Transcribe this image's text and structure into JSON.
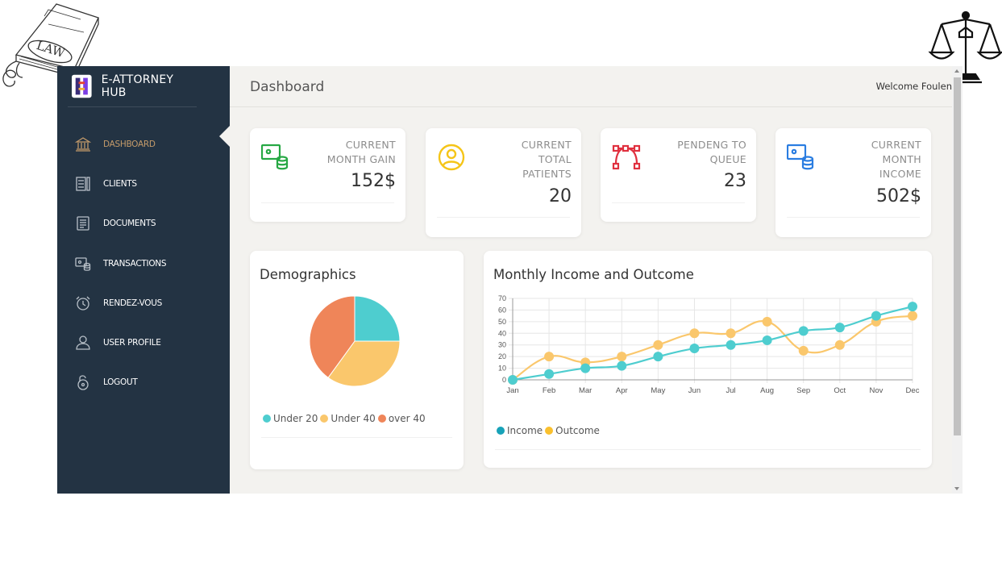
{
  "decor": {
    "book_text": "LAW"
  },
  "brand": {
    "name": "E-ATTORNEY HUB"
  },
  "nav": [
    {
      "label": "DASHBOARD",
      "icon": "bank-icon",
      "active": true
    },
    {
      "label": "CLIENTS",
      "icon": "list-icon"
    },
    {
      "label": "DOCUMENTS",
      "icon": "document-icon"
    },
    {
      "label": "TRANSACTIONS",
      "icon": "transactions-icon"
    },
    {
      "label": "RENDEZ-VOUS",
      "icon": "alarm-clock-icon"
    },
    {
      "label": "USER PROFILE",
      "icon": "user-icon"
    },
    {
      "label": "LOGOUT",
      "icon": "unlock-icon"
    }
  ],
  "header": {
    "title": "Dashboard",
    "welcome": "Welcome Foulen"
  },
  "stats": [
    {
      "label_lines": [
        "CURRENT",
        "MONTH GAIN"
      ],
      "value": "152$",
      "icon": "money-stack-icon",
      "color": "#27a844"
    },
    {
      "label_lines": [
        "CURRENT",
        "TOTAL",
        "PATIENTS"
      ],
      "value": "20",
      "icon": "user-circle-icon",
      "color": "#f5c518"
    },
    {
      "label_lines": [
        "PENDENG TO",
        "QUEUE"
      ],
      "value": "23",
      "icon": "bezier-icon",
      "color": "#e0303e"
    },
    {
      "label_lines": [
        "CURRENT",
        "MONTH",
        "INCOME"
      ],
      "value": "502$",
      "icon": "money-stack-icon",
      "color": "#2a7de1"
    }
  ],
  "demographics": {
    "title": "Demographics",
    "legend": [
      {
        "label": "Under 20",
        "color": "#4ecdcf"
      },
      {
        "label": "Under 40",
        "color": "#fac76c"
      },
      {
        "label": "over 40",
        "color": "#ef8559"
      }
    ]
  },
  "chart_data": [
    {
      "type": "pie",
      "title": "Demographics",
      "labels": [
        "Under 20",
        "Under 40",
        "over 40"
      ],
      "values": [
        25,
        35,
        40
      ],
      "colors": [
        "#4ecdcf",
        "#fac76c",
        "#ef8559"
      ]
    },
    {
      "type": "line",
      "title": "Monthly Income and Outcome",
      "categories": [
        "Jan",
        "Feb",
        "Mar",
        "Apr",
        "May",
        "Jun",
        "Jul",
        "Aug",
        "Sep",
        "Oct",
        "Nov",
        "Dec"
      ],
      "series": [
        {
          "name": "Income",
          "color": "#4ecdcf",
          "values": [
            0,
            5,
            10,
            12,
            20,
            27,
            30,
            34,
            42,
            45,
            55,
            63
          ]
        },
        {
          "name": "Outcome",
          "color": "#fac76c",
          "values": [
            0,
            20,
            15,
            20,
            30,
            40,
            40,
            50,
            25,
            30,
            50,
            55
          ]
        }
      ],
      "ylim": [
        0,
        70
      ],
      "yticks": [
        0,
        10,
        20,
        30,
        40,
        50,
        60,
        70
      ],
      "grid": true,
      "legend": [
        {
          "label": "Income",
          "color": "#17a2b8"
        },
        {
          "label": "Outcome",
          "color": "#fac02e"
        }
      ]
    }
  ]
}
